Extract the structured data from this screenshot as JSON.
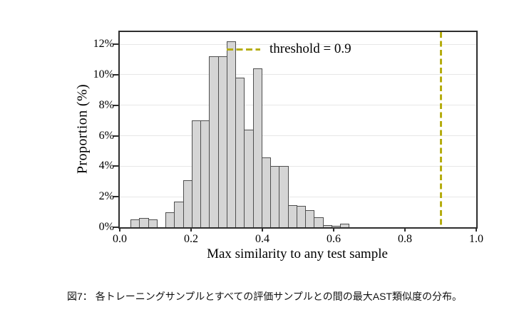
{
  "chart_data": {
    "type": "bar",
    "subtype": "histogram",
    "title": "",
    "xlabel": "Max similarity to any test sample",
    "ylabel": "Proportion (%)",
    "xlim": [
      0.0,
      1.0
    ],
    "ylim_percent": [
      0,
      12.8
    ],
    "grid": "horizontal",
    "grid_color": "#e7e7e7",
    "xticks": [
      {
        "value": 0.0,
        "label": "0.0"
      },
      {
        "value": 0.2,
        "label": "0.2"
      },
      {
        "value": 0.4,
        "label": "0.4"
      },
      {
        "value": 0.6,
        "label": "0.6"
      },
      {
        "value": 0.8,
        "label": "0.8"
      },
      {
        "value": 1.0,
        "label": "1.0"
      }
    ],
    "yticks": [
      {
        "value": 0,
        "label": "0%"
      },
      {
        "value": 2,
        "label": "2%"
      },
      {
        "value": 4,
        "label": "4%"
      },
      {
        "value": 6,
        "label": "6%"
      },
      {
        "value": 8,
        "label": "8%"
      },
      {
        "value": 10,
        "label": "10%"
      },
      {
        "value": 12,
        "label": "12%"
      }
    ],
    "bins": {
      "start": 0.03,
      "width": 0.0245
    },
    "proportions_percent": [
      0.5,
      0.6,
      0.5,
      0,
      1.0,
      1.7,
      3.1,
      7.0,
      7.0,
      11.2,
      11.2,
      12.2,
      9.8,
      6.4,
      10.4,
      4.6,
      4.0,
      4.0,
      1.45,
      1.4,
      1.1,
      0.65,
      0.15,
      0.1,
      0.25
    ],
    "bar_fill_color": "#d5d5d5",
    "bar_edge_color": "#4f4f4f",
    "threshold_line": {
      "x": 0.9,
      "style": "dashed",
      "color": "#b5ad10"
    },
    "legend": {
      "frame": false,
      "position": "upper-center",
      "entries": [
        {
          "label": "threshold = 0.9",
          "marker": "dashed-line",
          "color": "#b5ad10"
        }
      ]
    }
  },
  "caption": {
    "text": "図7： 各トレーニングサンプルとすべての評価サンプルとの間の最大AST類似度の分布。"
  }
}
